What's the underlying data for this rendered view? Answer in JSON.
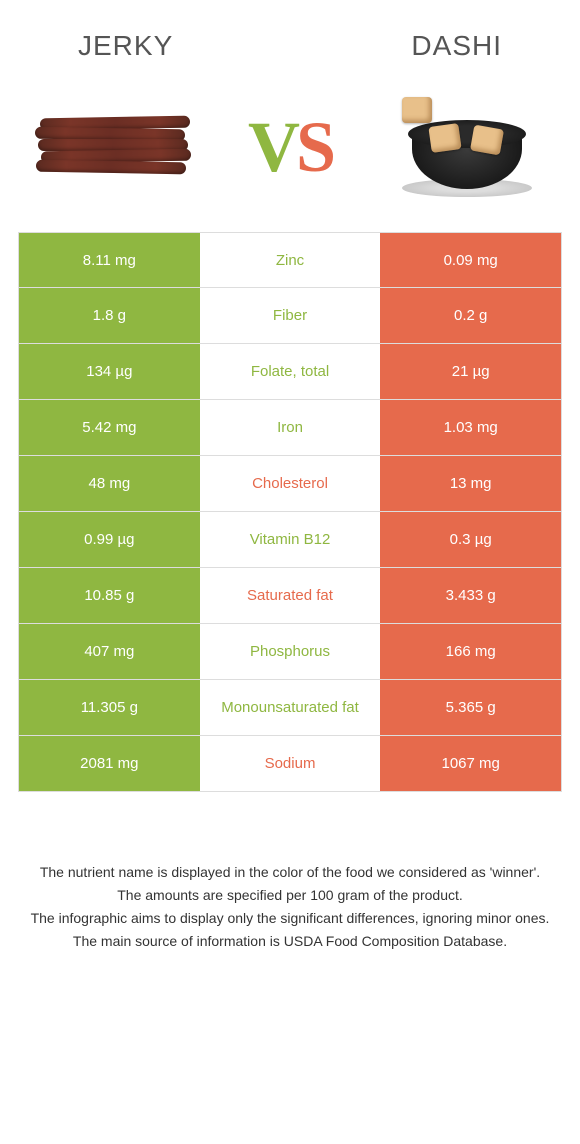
{
  "colors": {
    "green": "#8fb741",
    "orange": "#e66a4c",
    "border": "#dddddd",
    "text": "#333333"
  },
  "header": {
    "left": "Jerky",
    "right": "Dashi"
  },
  "vs": {
    "v": "V",
    "s": "S"
  },
  "rows": [
    {
      "left": "8.11 mg",
      "nutrient": "Zinc",
      "winner": "green",
      "right": "0.09 mg"
    },
    {
      "left": "1.8 g",
      "nutrient": "Fiber",
      "winner": "green",
      "right": "0.2 g"
    },
    {
      "left": "134 µg",
      "nutrient": "Folate, total",
      "winner": "green",
      "right": "21 µg"
    },
    {
      "left": "5.42 mg",
      "nutrient": "Iron",
      "winner": "green",
      "right": "1.03 mg"
    },
    {
      "left": "48 mg",
      "nutrient": "Cholesterol",
      "winner": "orange",
      "right": "13 mg"
    },
    {
      "left": "0.99 µg",
      "nutrient": "Vitamin B12",
      "winner": "green",
      "right": "0.3 µg"
    },
    {
      "left": "10.85 g",
      "nutrient": "Saturated fat",
      "winner": "orange",
      "right": "3.433 g"
    },
    {
      "left": "407 mg",
      "nutrient": "Phosphorus",
      "winner": "green",
      "right": "166 mg"
    },
    {
      "left": "11.305 g",
      "nutrient": "Monounsaturated fat",
      "winner": "green",
      "right": "5.365 g"
    },
    {
      "left": "2081 mg",
      "nutrient": "Sodium",
      "winner": "orange",
      "right": "1067 mg"
    }
  ],
  "footer": [
    "The nutrient name is displayed in the color of the food we considered as 'winner'.",
    "The amounts are specified per 100 gram of the product.",
    "The infographic aims to display only the significant differences, ignoring minor ones.",
    "The main source of information is USDA Food Composition Database."
  ]
}
